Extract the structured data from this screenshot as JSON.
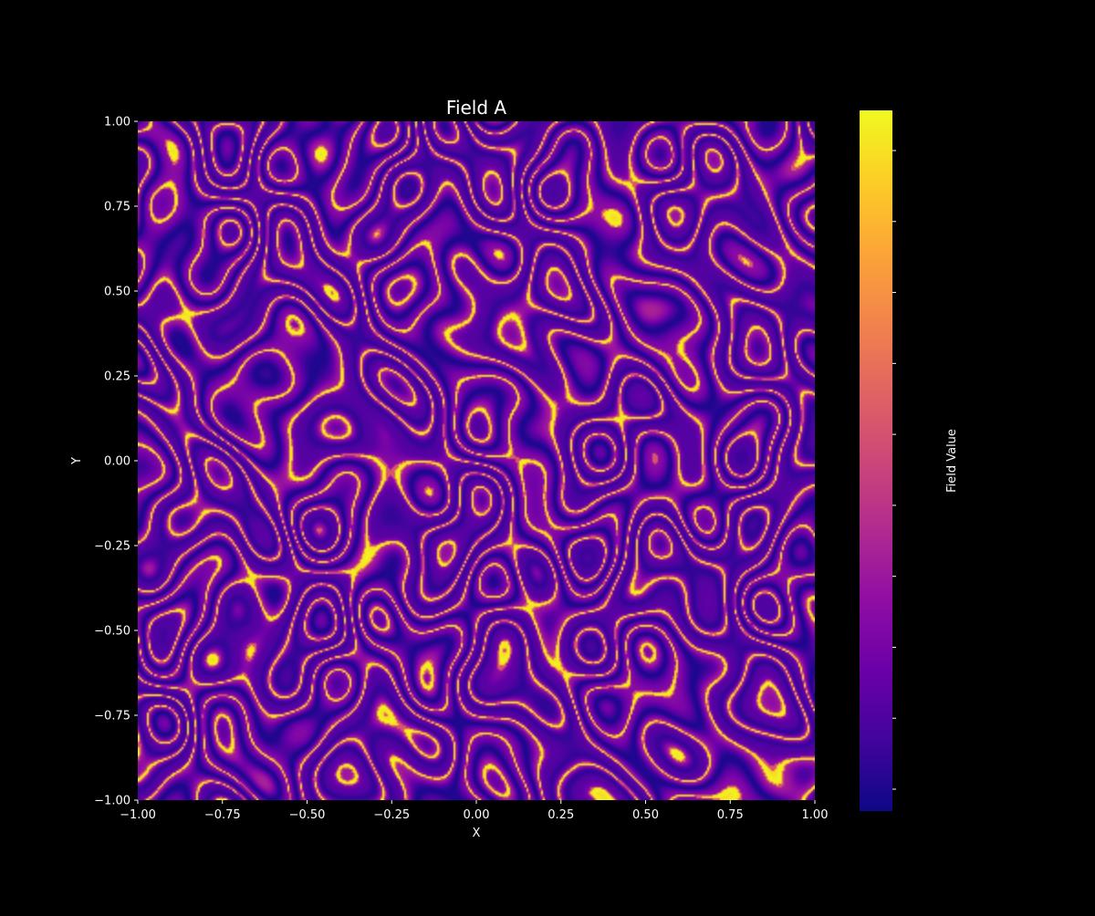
{
  "chart_data": {
    "type": "heatmap",
    "title": "Field A",
    "xlabel": "X",
    "ylabel": "Y",
    "xlim": [
      -1.0,
      1.0
    ],
    "ylim": [
      -1.0,
      1.0
    ],
    "xticks": [
      -1.0,
      -0.75,
      -0.5,
      -0.25,
      0.0,
      0.25,
      0.5,
      0.75,
      1.0
    ],
    "yticks": [
      -1.0,
      -0.75,
      -0.5,
      -0.25,
      0.0,
      0.25,
      0.5,
      0.75,
      1.0
    ],
    "xtick_labels": [
      "−1.00",
      "−0.75",
      "−0.50",
      "−0.25",
      "0.00",
      "0.25",
      "0.50",
      "0.75",
      "1.00"
    ],
    "ytick_labels": [
      "−1.00",
      "−0.75",
      "−0.50",
      "−0.25",
      "0.00",
      "0.25",
      "0.50",
      "0.75",
      "1.00"
    ],
    "colormap": "plasma",
    "colorbar": {
      "label": "Field Value",
      "tick_count": 10,
      "tick_labels_visible": false
    },
    "grid": false,
    "background": "#000000"
  }
}
